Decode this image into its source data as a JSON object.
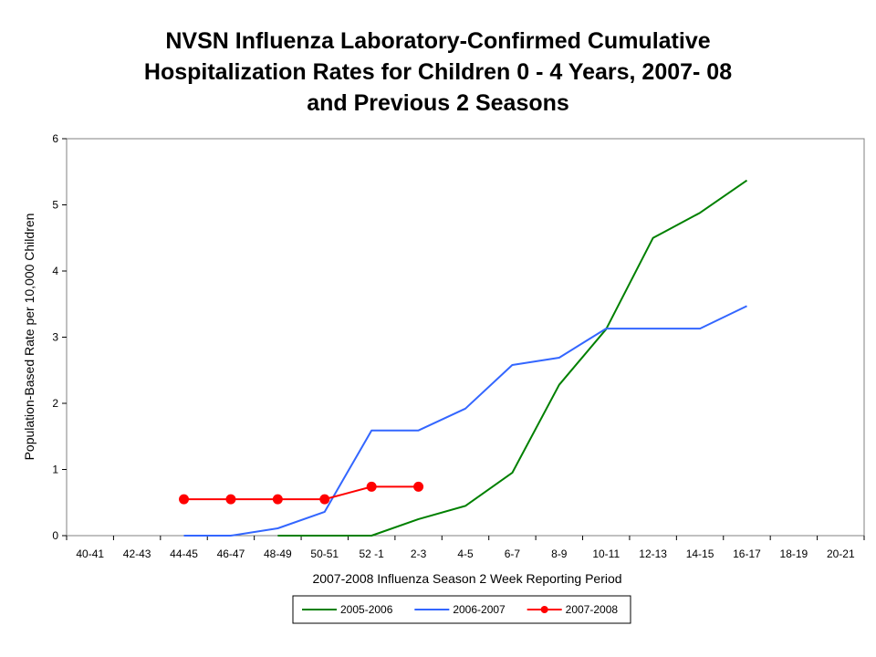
{
  "chart_data": {
    "type": "line",
    "title_lines": [
      "NVSN Influenza Laboratory-Confirmed Cumulative",
      "Hospitalization Rates for Children 0 - 4 Years, 2007- 08",
      "and Previous 2 Seasons"
    ],
    "xlabel": "2007-2008 Influenza Season 2 Week Reporting Period",
    "ylabel": "Population-Based Rate per 10,000 Children",
    "ylim": [
      0,
      6
    ],
    "yticks": [
      "0",
      "1",
      "2",
      "3",
      "4",
      "5",
      "6"
    ],
    "categories": [
      "40-41",
      "42-43",
      "44-45",
      "46-47",
      "48-49",
      "50-51",
      "52 -1",
      "2-3",
      "4-5",
      "6-7",
      "8-9",
      "10-11",
      "12-13",
      "14-15",
      "16-17",
      "18-19",
      "20-21"
    ],
    "grid": false,
    "legend_position": "bottom",
    "series": [
      {
        "name": "2005-2006",
        "color": "#008000",
        "marker": "none",
        "values": [
          null,
          null,
          null,
          null,
          0,
          0,
          0,
          0.25,
          0.45,
          0.95,
          2.28,
          3.12,
          4.5,
          4.88,
          5.37,
          null,
          null
        ]
      },
      {
        "name": "2006-2007",
        "color": "#3366ff",
        "marker": "none",
        "values": [
          null,
          null,
          0,
          0,
          0.11,
          0.36,
          1.59,
          1.59,
          1.92,
          2.58,
          2.69,
          3.13,
          3.13,
          3.13,
          3.47,
          null,
          null
        ]
      },
      {
        "name": "2007-2008",
        "color": "#ff0000",
        "marker": "circle",
        "values": [
          null,
          null,
          0.55,
          0.55,
          0.55,
          0.55,
          0.74,
          0.74,
          null,
          null,
          null,
          null,
          null,
          null,
          null,
          null,
          null
        ]
      }
    ]
  }
}
